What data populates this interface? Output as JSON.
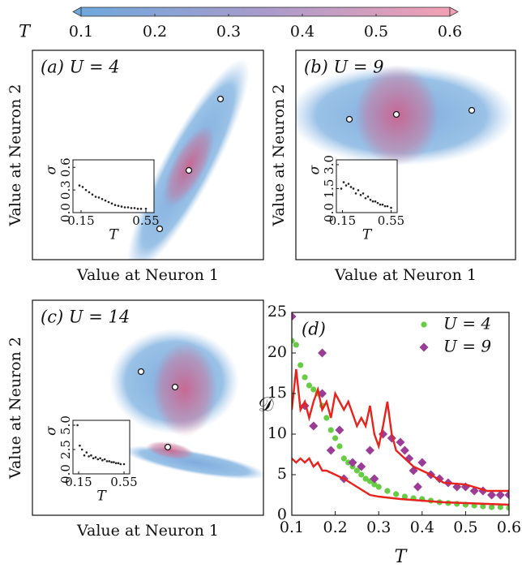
{
  "chart_data": [
    {
      "type": "colorbar",
      "label": "T",
      "xlim": [
        0.1,
        0.6
      ],
      "xticks": [
        0.1,
        0.2,
        0.3,
        0.4,
        0.5,
        0.6
      ],
      "colors": [
        "#6fa8dc",
        "#a99bcb",
        "#f2a0b4"
      ]
    },
    {
      "type": "cloud",
      "panel_label": "(a) U = 4",
      "xlabel": "Value at Neuron 1",
      "ylabel": "Value at Neuron 2",
      "inset": {
        "type": "scatter",
        "xlabel": "T",
        "ylabel": "σ",
        "xlim": [
          0.1,
          0.6
        ],
        "ylim": [
          0,
          0.7
        ],
        "xticks": [
          0.15,
          0.55
        ],
        "yticks": [
          {
            "value": 0,
            "label": "0.0"
          },
          0.3,
          0.6
        ],
        "x": [
          0.14,
          0.16,
          0.18,
          0.2,
          0.22,
          0.24,
          0.26,
          0.28,
          0.3,
          0.32,
          0.34,
          0.36,
          0.38,
          0.4,
          0.42,
          0.44,
          0.46,
          0.48,
          0.5,
          0.52,
          0.55
        ],
        "values": [
          0.36,
          0.34,
          0.3,
          0.27,
          0.24,
          0.21,
          0.2,
          0.18,
          0.16,
          0.14,
          0.12,
          0.1,
          0.09,
          0.08,
          0.07,
          0.07,
          0.06,
          0.06,
          0.05,
          0.05,
          0.05
        ]
      }
    },
    {
      "type": "cloud",
      "panel_label": "(b) U = 9",
      "xlabel": "Value at Neuron 1",
      "ylabel": "Value at Neuron 2",
      "inset": {
        "type": "scatter",
        "xlabel": "T",
        "ylabel": "σ",
        "xlim": [
          0.1,
          0.6
        ],
        "ylim": [
          0,
          3.3
        ],
        "xticks": [
          0.15,
          0.55
        ],
        "yticks": [
          {
            "value": 0,
            "label": "0.0"
          },
          1.5,
          {
            "value": 3,
            "label": "3.0"
          }
        ],
        "x": [
          0.14,
          0.16,
          0.18,
          0.2,
          0.22,
          0.24,
          0.26,
          0.28,
          0.3,
          0.32,
          0.34,
          0.36,
          0.38,
          0.4,
          0.42,
          0.44,
          0.46,
          0.48,
          0.5,
          0.52,
          0.55
        ],
        "values": [
          1.5,
          1.9,
          1.7,
          1.8,
          1.6,
          1.5,
          1.2,
          1.4,
          1.1,
          1.2,
          0.9,
          1.0,
          0.8,
          0.7,
          0.7,
          0.6,
          0.5,
          0.5,
          0.4,
          0.4,
          0.3
        ]
      }
    },
    {
      "type": "cloud",
      "panel_label": "(c) U = 14",
      "xlabel": "Value at Neuron 1",
      "ylabel": "Value at Neuron 2",
      "inset": {
        "type": "scatter",
        "xlabel": "T",
        "ylabel": "σ",
        "xlim": [
          0.1,
          0.6
        ],
        "ylim": [
          0,
          5.5
        ],
        "xticks": [
          0.15,
          0.55
        ],
        "yticks": [
          {
            "value": 0,
            "label": "0.0"
          },
          2.5,
          {
            "value": 5,
            "label": "5.0"
          }
        ],
        "x": [
          0.14,
          0.16,
          0.18,
          0.2,
          0.22,
          0.24,
          0.26,
          0.28,
          0.3,
          0.32,
          0.34,
          0.36,
          0.38,
          0.4,
          0.42,
          0.44,
          0.46,
          0.48,
          0.5,
          0.52,
          0.55
        ],
        "values": [
          5.0,
          2.9,
          2.5,
          1.9,
          2.2,
          1.8,
          1.9,
          1.6,
          1.7,
          1.5,
          1.6,
          1.4,
          1.5,
          1.3,
          1.3,
          1.2,
          1.2,
          1.1,
          1.1,
          1.0,
          1.0
        ]
      }
    },
    {
      "type": "scatter",
      "panel_label": "(d)",
      "xlabel": "T",
      "ylabel": "𝒟",
      "xlim": [
        0.1,
        0.6
      ],
      "ylim": [
        0,
        25
      ],
      "xticks": [
        0.1,
        0.2,
        0.3,
        0.4,
        0.5,
        0.6
      ],
      "yticks": [
        0,
        5,
        10,
        15,
        20,
        25
      ],
      "legend": "upper right",
      "series": [
        {
          "name": "U = 4",
          "color": "#66cc44",
          "marker": "circle",
          "x": [
            0.1,
            0.11,
            0.12,
            0.13,
            0.14,
            0.15,
            0.16,
            0.17,
            0.18,
            0.19,
            0.2,
            0.21,
            0.22,
            0.23,
            0.24,
            0.25,
            0.26,
            0.27,
            0.28,
            0.29,
            0.3,
            0.32,
            0.34,
            0.36,
            0.38,
            0.4,
            0.42,
            0.44,
            0.46,
            0.48,
            0.5,
            0.52,
            0.54,
            0.56,
            0.58,
            0.6
          ],
          "values": [
            21.5,
            21,
            18.5,
            17,
            16,
            15.5,
            15,
            13.5,
            12,
            10.5,
            9.5,
            8.5,
            7,
            6.5,
            6,
            5.5,
            5,
            4.5,
            4.2,
            3.8,
            3.5,
            3,
            2.6,
            2.3,
            2.1,
            2,
            1.8,
            1.6,
            1.5,
            1.4,
            1.3,
            1.2,
            1.1,
            1,
            1,
            0.9
          ]
        },
        {
          "name": "U = 9",
          "color": "#9b3d96",
          "marker": "diamond",
          "x": [
            0.1,
            0.13,
            0.15,
            0.17,
            0.17,
            0.19,
            0.21,
            0.22,
            0.24,
            0.26,
            0.28,
            0.29,
            0.31,
            0.33,
            0.35,
            0.36,
            0.37,
            0.38,
            0.39,
            0.4,
            0.42,
            0.44,
            0.46,
            0.48,
            0.5,
            0.52,
            0.54,
            0.56,
            0.58,
            0.6
          ],
          "values": [
            24.5,
            13.5,
            11,
            20,
            15,
            8,
            10.5,
            4.5,
            6.5,
            6,
            8,
            4.5,
            10,
            9.5,
            9,
            8,
            7,
            5.5,
            3.5,
            6.5,
            5,
            4.5,
            4,
            3.5,
            3.5,
            3,
            3,
            2.5,
            2.5,
            2.5
          ]
        },
        {
          "color": "#e8221c",
          "marker": "line",
          "x": [
            0.1,
            0.11,
            0.12,
            0.13,
            0.14,
            0.15,
            0.16,
            0.17,
            0.18,
            0.19,
            0.2,
            0.21,
            0.22,
            0.23,
            0.24,
            0.25,
            0.26,
            0.27,
            0.28,
            0.29,
            0.3,
            0.31,
            0.32,
            0.33,
            0.34,
            0.35,
            0.36,
            0.38,
            0.4,
            0.42,
            0.45,
            0.5,
            0.55,
            0.6
          ],
          "values": [
            13,
            18,
            13,
            14,
            12,
            14,
            15.5,
            13,
            14,
            12,
            15,
            14,
            13,
            14,
            12.5,
            11,
            12,
            11,
            13.5,
            10,
            8.5,
            11,
            14,
            10,
            8,
            7.5,
            7,
            6,
            5.5,
            5,
            4,
            3.8,
            3,
            3
          ]
        },
        {
          "color": "#e8221c",
          "marker": "line",
          "x": [
            0.1,
            0.11,
            0.12,
            0.13,
            0.14,
            0.15,
            0.16,
            0.17,
            0.18,
            0.2,
            0.22,
            0.25,
            0.28,
            0.3,
            0.35,
            0.4,
            0.45,
            0.5,
            0.55,
            0.6
          ],
          "values": [
            7,
            6.5,
            7,
            6.5,
            7,
            6,
            6.5,
            5.5,
            5.5,
            5,
            4.5,
            3.5,
            2.5,
            2.3,
            2,
            1.8,
            1.6,
            1.5,
            1.4,
            1.3
          ]
        }
      ]
    }
  ]
}
